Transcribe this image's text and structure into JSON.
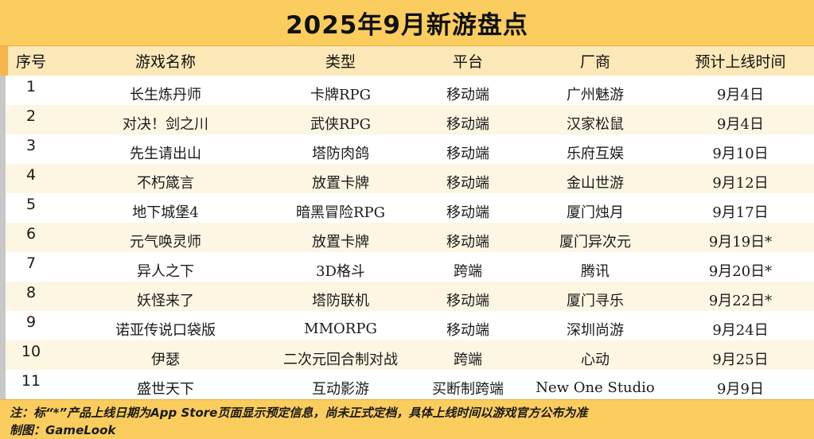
{
  "title": "2025年9月新游盘点",
  "headers": [
    "序号",
    "游戏名称",
    "类型",
    "平台",
    "厂商",
    "预计上线时间"
  ],
  "rows": [
    {
      "no": "1",
      "name": "长生炼丹师",
      "type": "卡牌RPG",
      "platform": "移动端",
      "vendor": "广州魅游",
      "date": "9月4日"
    },
    {
      "no": "2",
      "name": "对决！剑之川",
      "type": "武侠RPG",
      "platform": "移动端",
      "vendor": "汉家松鼠",
      "date": "9月4日"
    },
    {
      "no": "3",
      "name": "先生请出山",
      "type": "塔防肉鸽",
      "platform": "移动端",
      "vendor": "乐府互娱",
      "date": "9月10日"
    },
    {
      "no": "4",
      "name": "不朽箴言",
      "type": "放置卡牌",
      "platform": "移动端",
      "vendor": "金山世游",
      "date": "9月12日"
    },
    {
      "no": "5",
      "name": "地下城堡4",
      "type": "暗黑冒险RPG",
      "platform": "移动端",
      "vendor": "厦门烛月",
      "date": "9月17日"
    },
    {
      "no": "6",
      "name": "元气唤灵师",
      "type": "放置卡牌",
      "platform": "移动端",
      "vendor": "厦门异次元",
      "date": "9月19日*"
    },
    {
      "no": "7",
      "name": "异人之下",
      "type": "3D格斗",
      "platform": "跨端",
      "vendor": "腾讯",
      "date": "9月20日*"
    },
    {
      "no": "8",
      "name": "妖怪来了",
      "type": "塔防联机",
      "platform": "移动端",
      "vendor": "厦门寻乐",
      "date": "9月22日*"
    },
    {
      "no": "9",
      "name": "诺亚传说口袋版",
      "type": "MMORPG",
      "platform": "移动端",
      "vendor": "深圳尚游",
      "date": "9月24日"
    },
    {
      "no": "10",
      "name": "伊瑟",
      "type": "二次元回合制对战",
      "platform": "跨端",
      "vendor": "心动",
      "date": "9月25日"
    },
    {
      "no": "11",
      "name": "盛世天下",
      "type": "互动影游",
      "platform": "买断制跨端",
      "vendor": "New One Studio",
      "date": "9月9日"
    }
  ],
  "footer": {
    "note": "注：标“*”产品上线日期为App Store页面显示预定信息，尚未正式定档，具体上线时间以游戏官方公布为准",
    "credit": "制图：GameLook"
  },
  "colors": {
    "title_bg": "#fbcd5e",
    "header_bg": "#fde8b8",
    "row_alt_bg": "#fdf6e3",
    "footer_bg": "#fbcd5e"
  }
}
